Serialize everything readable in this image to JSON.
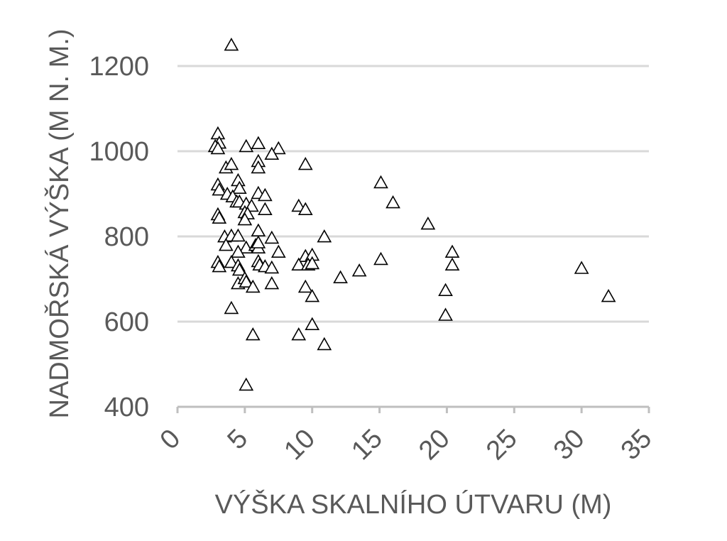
{
  "chart_data": {
    "type": "scatter",
    "title": "",
    "xlabel": "VÝŠKA SKALNÍHO ÚTVARU (M)",
    "ylabel": "NADMOŘSKÁ VÝŠKA (M N. M.)",
    "xlim": [
      0,
      35
    ],
    "ylim": [
      400,
      1250
    ],
    "x_ticks": [
      0,
      5,
      10,
      15,
      20,
      25,
      30,
      35
    ],
    "y_ticks": [
      400,
      600,
      800,
      1000,
      1200
    ],
    "grid": true,
    "legend": "none",
    "marker": "open-triangle",
    "colors": {
      "marker_stroke": "#000000",
      "grid": "#d9d9d9",
      "text": "#595959"
    },
    "series": [
      {
        "points": [
          [
            4.0,
            1248
          ],
          [
            3.0,
            1040
          ],
          [
            3.1,
            1018
          ],
          [
            2.8,
            1010
          ],
          [
            3.0,
            1005
          ],
          [
            5.1,
            1010
          ],
          [
            6.0,
            1017
          ],
          [
            7.5,
            1005
          ],
          [
            7.0,
            992
          ],
          [
            6.0,
            975
          ],
          [
            6.0,
            960
          ],
          [
            9.5,
            968
          ],
          [
            3.6,
            960
          ],
          [
            4.0,
            968
          ],
          [
            4.5,
            930
          ],
          [
            4.6,
            912
          ],
          [
            3.0,
            920
          ],
          [
            3.1,
            908
          ],
          [
            3.7,
            898
          ],
          [
            4.1,
            892
          ],
          [
            6.0,
            900
          ],
          [
            6.5,
            895
          ],
          [
            4.4,
            880
          ],
          [
            4.6,
            880
          ],
          [
            5.1,
            875
          ],
          [
            5.5,
            870
          ],
          [
            6.5,
            862
          ],
          [
            9.0,
            870
          ],
          [
            9.5,
            862
          ],
          [
            3.0,
            850
          ],
          [
            3.1,
            842
          ],
          [
            5.0,
            855
          ],
          [
            5.2,
            852
          ],
          [
            5.0,
            838
          ],
          [
            6.0,
            812
          ],
          [
            3.5,
            798
          ],
          [
            4.0,
            800
          ],
          [
            4.5,
            800
          ],
          [
            7.0,
            795
          ],
          [
            10.9,
            798
          ],
          [
            3.6,
            778
          ],
          [
            5.1,
            772
          ],
          [
            5.8,
            778
          ],
          [
            6.0,
            772
          ],
          [
            6.0,
            784
          ],
          [
            4.5,
            762
          ],
          [
            7.5,
            762
          ],
          [
            9.5,
            752
          ],
          [
            10.0,
            755
          ],
          [
            3.0,
            738
          ],
          [
            3.1,
            728
          ],
          [
            4.0,
            738
          ],
          [
            4.5,
            730
          ],
          [
            4.6,
            720
          ],
          [
            6.0,
            740
          ],
          [
            6.1,
            732
          ],
          [
            6.5,
            728
          ],
          [
            7.0,
            725
          ],
          [
            9.0,
            732
          ],
          [
            9.7,
            732
          ],
          [
            10.0,
            735
          ],
          [
            4.5,
            688
          ],
          [
            5.0,
            700
          ],
          [
            5.1,
            692
          ],
          [
            5.6,
            680
          ],
          [
            7.0,
            688
          ],
          [
            9.5,
            680
          ],
          [
            10.0,
            658
          ],
          [
            4.0,
            630
          ],
          [
            5.6,
            568
          ],
          [
            9.0,
            568
          ],
          [
            10.0,
            592
          ],
          [
            10.9,
            545
          ],
          [
            5.1,
            450
          ],
          [
            12.1,
            702
          ],
          [
            13.5,
            718
          ],
          [
            15.1,
            745
          ],
          [
            15.1,
            925
          ],
          [
            16.0,
            878
          ],
          [
            18.6,
            828
          ],
          [
            19.9,
            672
          ],
          [
            19.9,
            614
          ],
          [
            20.4,
            762
          ],
          [
            20.4,
            732
          ],
          [
            30.0,
            724
          ],
          [
            32.0,
            658
          ]
        ]
      }
    ]
  }
}
